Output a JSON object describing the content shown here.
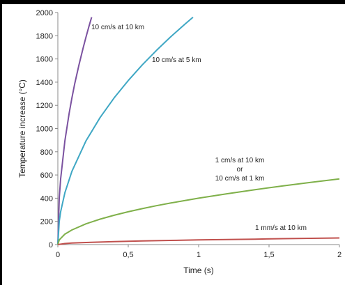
{
  "chart_data": {
    "type": "line",
    "xlabel": "Time (s)",
    "ylabel": "Temperature increase (°C)",
    "xlim": [
      0,
      2
    ],
    "ylim": [
      0,
      2000
    ],
    "x_ticks": [
      "0",
      "0,5",
      "1",
      "1,5",
      "2"
    ],
    "y_ticks": [
      "0",
      "200",
      "400",
      "600",
      "800",
      "1000",
      "1200",
      "1400",
      "1600",
      "1800",
      "2000"
    ],
    "grid": false,
    "series": [
      {
        "color": "#7b52a0",
        "x": [
          0,
          0.01,
          0.02,
          0.05,
          0.08,
          0.1,
          0.12,
          0.15,
          0.18,
          0.2,
          0.22,
          0.24
        ],
        "y": [
          0,
          400,
          566,
          894,
          1131,
          1265,
          1386,
          1549,
          1697,
          1789,
          1876,
          1960
        ]
      },
      {
        "color": "#3fa7c4",
        "x": [
          0,
          0.01,
          0.02,
          0.05,
          0.1,
          0.2,
          0.3,
          0.4,
          0.5,
          0.6,
          0.7,
          0.8,
          0.9,
          0.96
        ],
        "y": [
          0,
          200,
          283,
          447,
          632,
          894,
          1095,
          1265,
          1414,
          1549,
          1673,
          1789,
          1897,
          1960
        ]
      },
      {
        "color": "#7fb04a",
        "x": [
          0,
          0.01,
          0.05,
          0.1,
          0.2,
          0.3,
          0.4,
          0.5,
          0.6,
          0.7,
          0.8,
          0.9,
          1.0,
          1.2,
          1.4,
          1.6,
          1.8,
          2.0
        ],
        "y": [
          0,
          40,
          90,
          126,
          179,
          219,
          253,
          283,
          310,
          335,
          358,
          379,
          400,
          438,
          473,
          506,
          537,
          566
        ]
      },
      {
        "color": "#c0504d",
        "x": [
          0,
          0.05,
          0.1,
          0.2,
          0.4,
          0.6,
          0.8,
          1.0,
          1.2,
          1.4,
          1.6,
          1.8,
          2.0
        ],
        "y": [
          0,
          9,
          13,
          18,
          25,
          31,
          36,
          40,
          44,
          47,
          51,
          54,
          57
        ]
      }
    ],
    "annotations": [
      {
        "lines": [
          "10 cm/s at 10 km"
        ]
      },
      {
        "lines": [
          "10 cm/s at 5 km"
        ]
      },
      {
        "lines": [
          "1 cm/s at 10 km",
          "or",
          "10 cm/s at 1 km"
        ]
      },
      {
        "lines": [
          "1 mm/s at 10 km"
        ]
      }
    ]
  }
}
